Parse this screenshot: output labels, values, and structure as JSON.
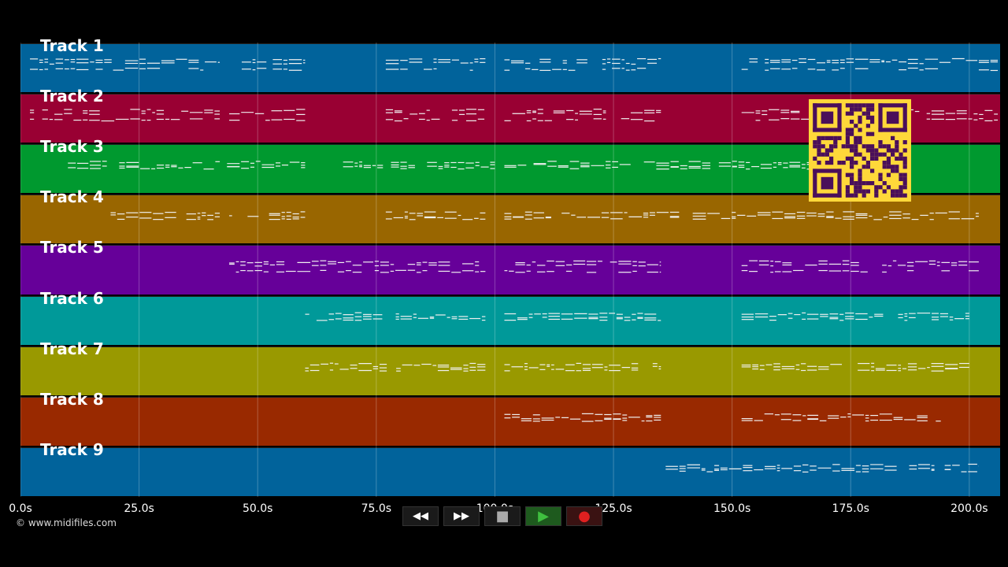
{
  "app": {
    "copyright": "© www.midifiles.com"
  },
  "tracks": [
    {
      "label": "Track 1",
      "color": "#01639b"
    },
    {
      "label": "Track 2",
      "color": "#990033"
    },
    {
      "label": "Track 3",
      "color": "#00992f"
    },
    {
      "label": "Track 4",
      "color": "#996600"
    },
    {
      "label": "Track 5",
      "color": "#660099"
    },
    {
      "label": "Track 6",
      "color": "#009999"
    },
    {
      "label": "Track 7",
      "color": "#999900"
    },
    {
      "label": "Track 8",
      "color": "#992900"
    },
    {
      "label": "Track 9",
      "color": "#01639b"
    }
  ],
  "timeline": {
    "ticks": [
      "0.0s",
      "25.0s",
      "50.0s",
      "75.0s",
      "100.0s",
      "125.0s",
      "150.0s",
      "175.0s",
      "200.0s"
    ],
    "tick_values": [
      0,
      25,
      50,
      75,
      100,
      125,
      150,
      175,
      200
    ],
    "max_seconds": 206.5
  },
  "transport": {
    "rewind": "◀◀",
    "forward": "▶▶",
    "stop": "■",
    "play": "▶",
    "record": "●",
    "accent_play": "#3fbf3f",
    "accent_record": "#e02020"
  },
  "overlay": {
    "qr_icon": "qr-code-icon",
    "qr_bg": "#ffd83a",
    "qr_fg": "#4a0f5a"
  },
  "note_segments": [
    {
      "track": 0,
      "spans": [
        [
          2,
          42
        ],
        [
          44,
          60
        ],
        [
          77,
          98
        ],
        [
          102,
          135
        ],
        [
          152,
          206
        ]
      ]
    },
    {
      "track": 1,
      "spans": [
        [
          2,
          42
        ],
        [
          44,
          60
        ],
        [
          77,
          98
        ],
        [
          102,
          135
        ],
        [
          152,
          206
        ]
      ]
    },
    {
      "track": 2,
      "spans": [
        [
          10,
          60
        ],
        [
          68,
          100
        ],
        [
          102,
          168
        ]
      ]
    },
    {
      "track": 3,
      "spans": [
        [
          19,
          42
        ],
        [
          44,
          60
        ],
        [
          77,
          98
        ],
        [
          102,
          202
        ]
      ]
    },
    {
      "track": 4,
      "spans": [
        [
          44,
          98
        ],
        [
          102,
          135
        ],
        [
          152,
          202
        ]
      ]
    },
    {
      "track": 5,
      "spans": [
        [
          60,
          98
        ],
        [
          102,
          135
        ],
        [
          152,
          200
        ]
      ]
    },
    {
      "track": 6,
      "spans": [
        [
          60,
          98
        ],
        [
          102,
          135
        ],
        [
          152,
          200
        ]
      ]
    },
    {
      "track": 7,
      "spans": [
        [
          102,
          135
        ],
        [
          152,
          194
        ]
      ]
    },
    {
      "track": 8,
      "spans": [
        [
          136,
          202
        ]
      ]
    }
  ]
}
